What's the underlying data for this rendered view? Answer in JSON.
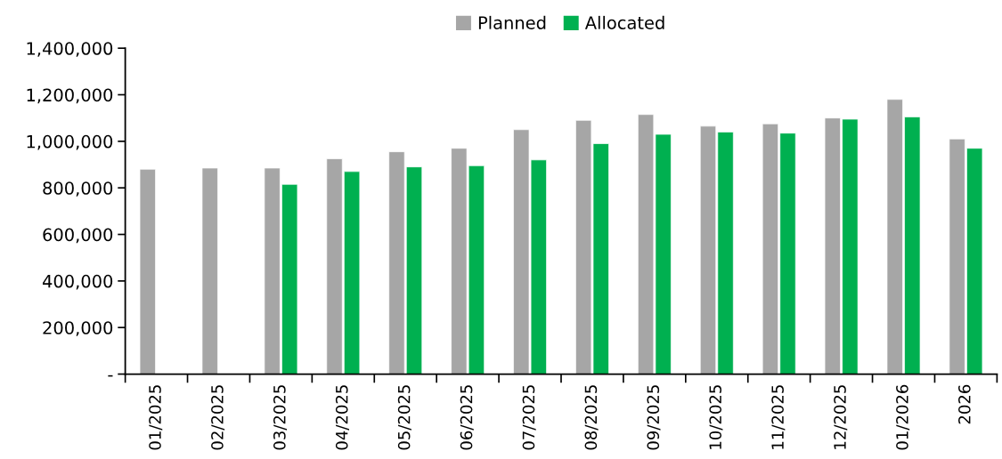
{
  "chart_data": {
    "type": "bar",
    "categories": [
      "01/2025",
      "02/2025",
      "03/2025",
      "04/2025",
      "05/2025",
      "06/2025",
      "07/2025",
      "08/2025",
      "09/2025",
      "10/2025",
      "11/2025",
      "12/2025",
      "01/2026",
      "2026"
    ],
    "series": [
      {
        "name": "Planned",
        "color": "#a6a6a6",
        "values": [
          880000,
          885000,
          885000,
          925000,
          955000,
          970000,
          1050000,
          1090000,
          1115000,
          1065000,
          1075000,
          1100000,
          1180000,
          1010000
        ]
      },
      {
        "name": "Allocated",
        "color": "#00b050",
        "values": [
          null,
          null,
          815000,
          870000,
          890000,
          895000,
          920000,
          990000,
          1030000,
          1040000,
          1035000,
          1095000,
          1105000,
          970000
        ]
      }
    ],
    "ylim": [
      0,
      1400000
    ],
    "yticks": [
      {
        "value": 0,
        "label": "-"
      },
      {
        "value": 200000,
        "label": "200,000"
      },
      {
        "value": 400000,
        "label": "400,000"
      },
      {
        "value": 600000,
        "label": "600,000"
      },
      {
        "value": 800000,
        "label": "800,000"
      },
      {
        "value": 1000000,
        "label": "1,000,000"
      },
      {
        "value": 1200000,
        "label": "1,200,000"
      },
      {
        "value": 1400000,
        "label": "1,400,000"
      }
    ],
    "grid": false,
    "legend": "top"
  }
}
